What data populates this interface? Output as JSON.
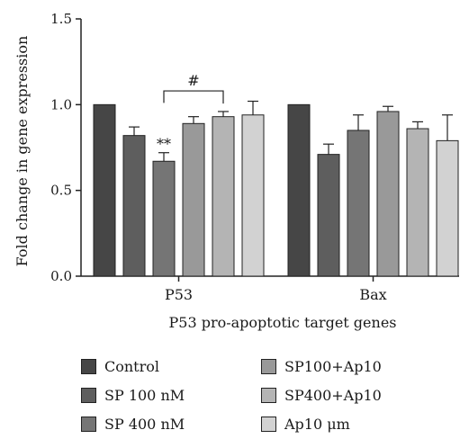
{
  "chart_data": {
    "type": "bar",
    "xlabel": "P53 pro-apoptotic target genes",
    "ylabel": "Fold change in gene expression",
    "ylim": [
      0,
      1.5
    ],
    "yticks": [
      "0.0",
      "0.5",
      "1.0",
      "1.5"
    ],
    "categories": [
      "P53",
      "Bax"
    ],
    "series": [
      {
        "name": "Control",
        "color": "#464646",
        "values": [
          1.0,
          1.0
        ],
        "errors": [
          0.0,
          0.0
        ]
      },
      {
        "name": "SP 100 nM",
        "color": "#5e5e5e",
        "values": [
          0.82,
          0.71
        ],
        "errors": [
          0.05,
          0.06
        ]
      },
      {
        "name": "SP 400 nM",
        "color": "#757575",
        "values": [
          0.67,
          0.85
        ],
        "errors": [
          0.05,
          0.09
        ]
      },
      {
        "name": "SP100+Ap10",
        "color": "#999999",
        "values": [
          0.89,
          0.96
        ],
        "errors": [
          0.04,
          0.03
        ]
      },
      {
        "name": "SP400+Ap10",
        "color": "#b4b4b4",
        "values": [
          0.93,
          0.86
        ],
        "errors": [
          0.03,
          0.04
        ]
      },
      {
        "name": "Ap10 μm",
        "color": "#d2d2d2",
        "values": [
          0.94,
          0.79
        ],
        "errors": [
          0.08,
          0.15
        ]
      }
    ],
    "annotations": [
      {
        "text": "**",
        "series": 2,
        "category": 0
      },
      {
        "text": "#",
        "from_series": 2,
        "to_series": 4,
        "category": 0
      }
    ],
    "legend": "bottom"
  }
}
